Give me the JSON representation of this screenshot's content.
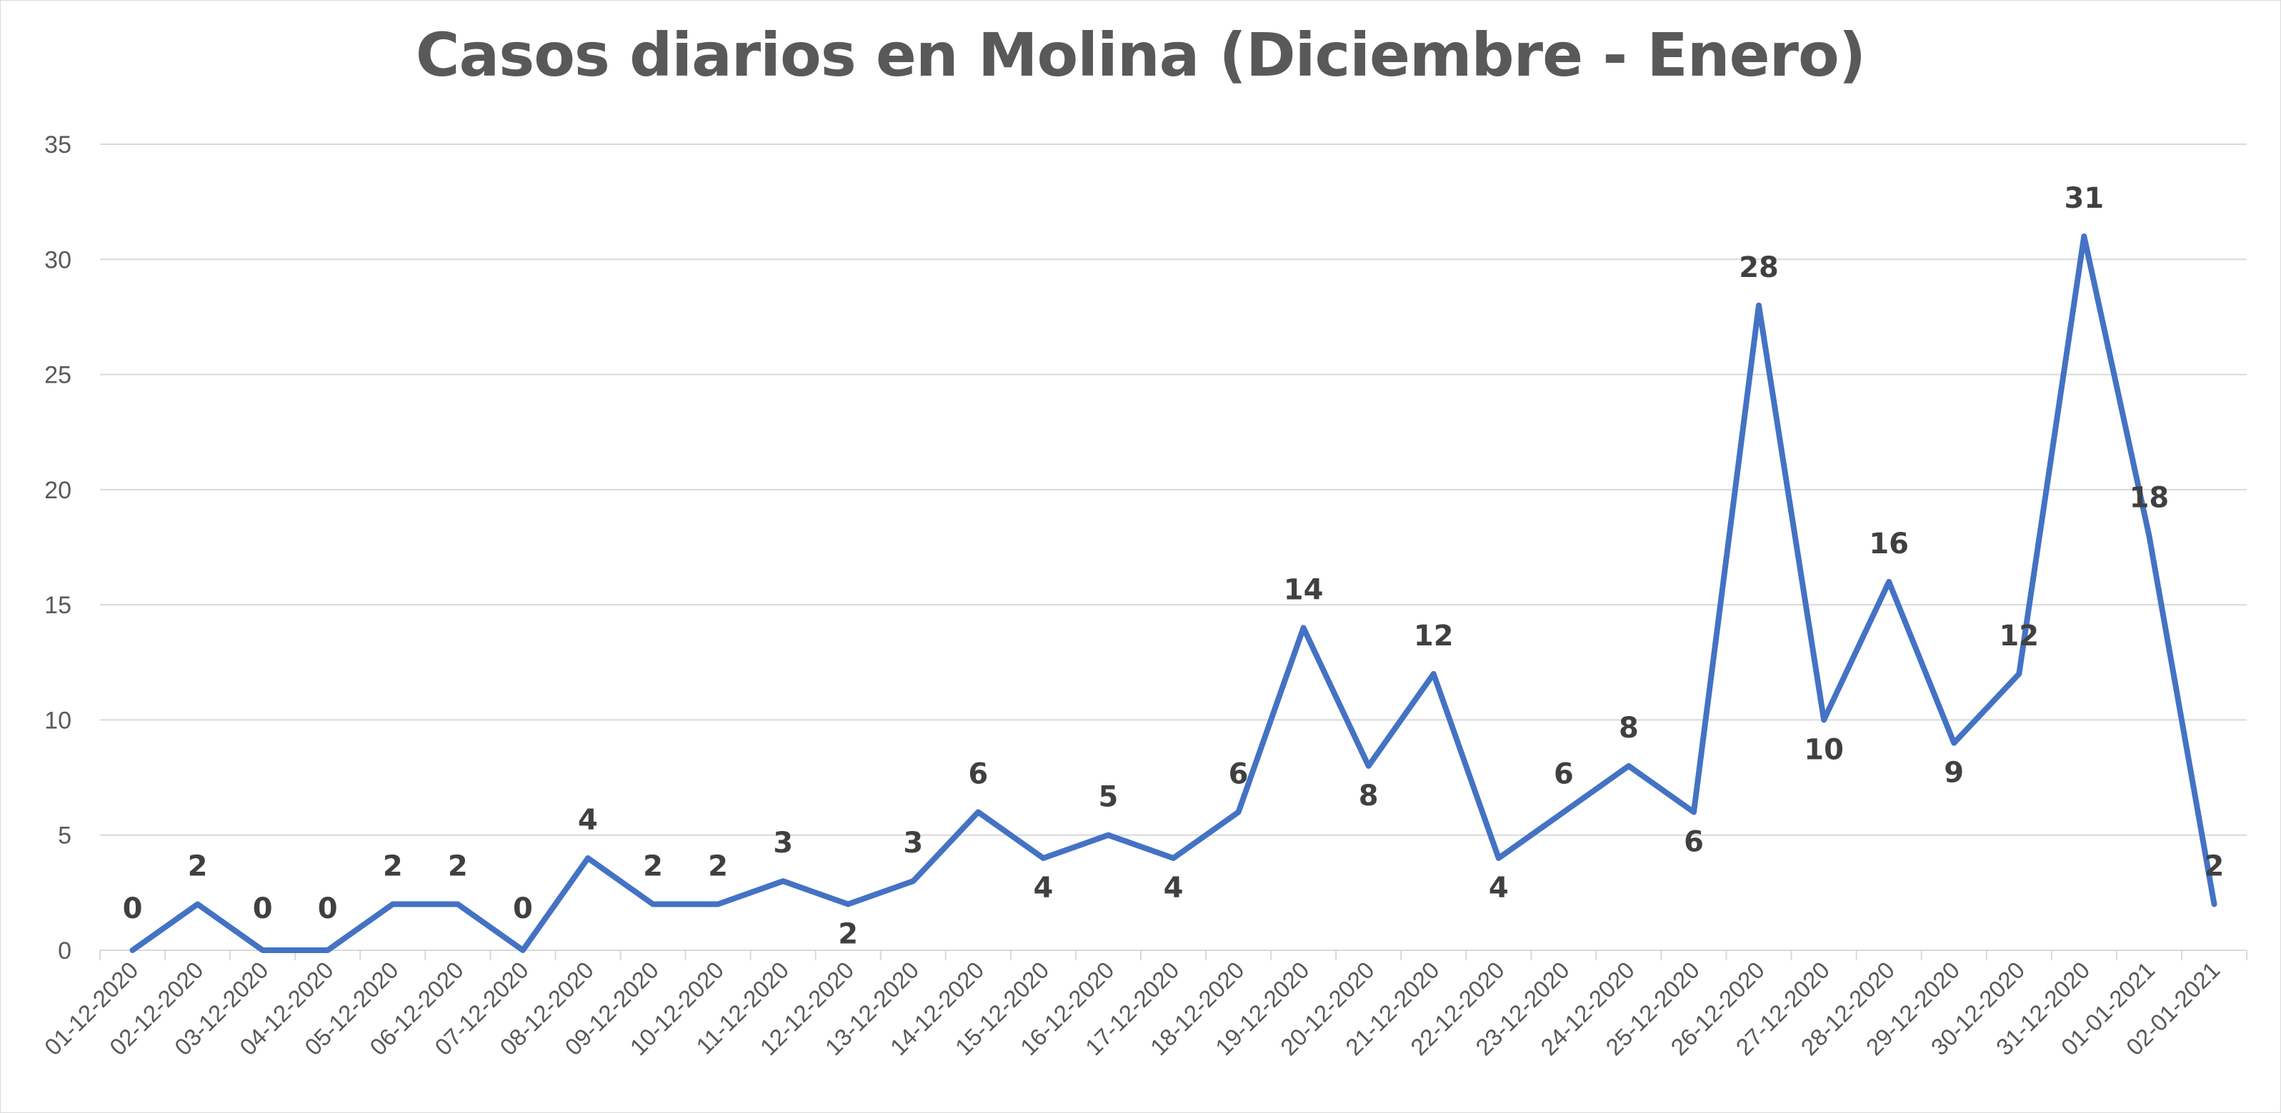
{
  "chart_data": {
    "type": "line",
    "title": "Casos diarios en Molina (Diciembre - Enero)",
    "xlabel": "",
    "ylabel": "",
    "ylim": [
      0,
      35
    ],
    "yticks": [
      0,
      5,
      10,
      15,
      20,
      25,
      30,
      35
    ],
    "grid": true,
    "legend": "none",
    "categories": [
      "01-12-2020",
      "02-12-2020",
      "03-12-2020",
      "04-12-2020",
      "05-12-2020",
      "06-12-2020",
      "07-12-2020",
      "08-12-2020",
      "09-12-2020",
      "10-12-2020",
      "11-12-2020",
      "12-12-2020",
      "13-12-2020",
      "14-12-2020",
      "15-12-2020",
      "16-12-2020",
      "17-12-2020",
      "18-12-2020",
      "19-12-2020",
      "20-12-2020",
      "21-12-2020",
      "22-12-2020",
      "23-12-2020",
      "24-12-2020",
      "25-12-2020",
      "26-12-2020",
      "27-12-2020",
      "28-12-2020",
      "29-12-2020",
      "30-12-2020",
      "31-12-2020",
      "01-01-2021",
      "02-01-2021"
    ],
    "series": [
      {
        "name": "",
        "color": "#4472c4",
        "values": [
          0,
          2,
          0,
          0,
          2,
          2,
          0,
          4,
          2,
          2,
          3,
          2,
          3,
          6,
          4,
          5,
          4,
          6,
          14,
          8,
          12,
          4,
          6,
          8,
          6,
          28,
          10,
          16,
          9,
          12,
          31,
          18,
          2
        ]
      }
    ],
    "colors": {
      "line": "#4472c4",
      "grid": "#d9d9d9",
      "title": "#595959",
      "labels": "#404040",
      "ticks": "#595959"
    }
  }
}
